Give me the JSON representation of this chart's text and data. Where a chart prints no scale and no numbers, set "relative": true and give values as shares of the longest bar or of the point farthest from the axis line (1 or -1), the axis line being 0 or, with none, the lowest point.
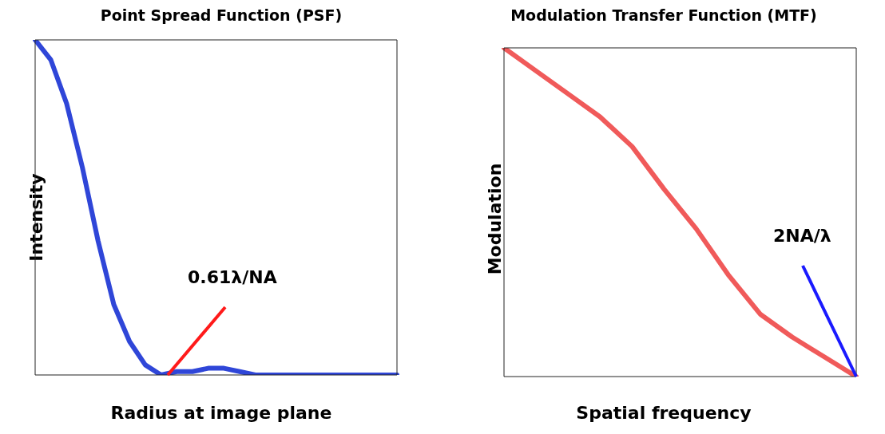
{
  "chart_data": [
    {
      "type": "line",
      "title": "Point Spread Function (PSF)",
      "xlabel": "Radius at image plane",
      "ylabel": "Intensity",
      "relative": true,
      "categories": [
        null,
        null,
        null,
        null,
        null,
        null,
        null,
        null,
        null,
        null,
        null,
        null,
        null,
        null,
        null,
        null,
        null,
        null,
        null,
        null,
        null,
        null,
        null,
        null
      ],
      "series": [
        {
          "color": "#2f46d8",
          "values": [
            1.0,
            0.94,
            0.81,
            0.62,
            0.4,
            0.21,
            0.1,
            0.03,
            0.0,
            0.01,
            0.01,
            0.02,
            0.02,
            0.01,
            0.0,
            0.0,
            0.0,
            0.0,
            0.0,
            0.0,
            0.0,
            0.0,
            0.0,
            0.0
          ]
        }
      ],
      "annotations": [
        "0.61λ/NA"
      ],
      "marker": "none",
      "line_style": "solid",
      "legend": false,
      "grid": false
    },
    {
      "type": "line",
      "title": "Modulation Transfer Function (MTF)",
      "xlabel": "Spatial frequency",
      "ylabel": "Modulation",
      "relative": true,
      "categories": [
        null,
        null,
        null,
        null,
        null,
        null,
        null,
        null,
        null,
        null,
        null,
        null
      ],
      "series": [
        {
          "color": "#f05a5a",
          "values": [
            1.0,
            0.93,
            0.86,
            0.79,
            0.7,
            0.57,
            0.45,
            0.31,
            0.19,
            0.12,
            0.06,
            0.0
          ]
        }
      ],
      "annotations": [
        "2NA/λ"
      ],
      "marker": "none",
      "line_style": "solid",
      "legend": false,
      "grid": false
    }
  ]
}
